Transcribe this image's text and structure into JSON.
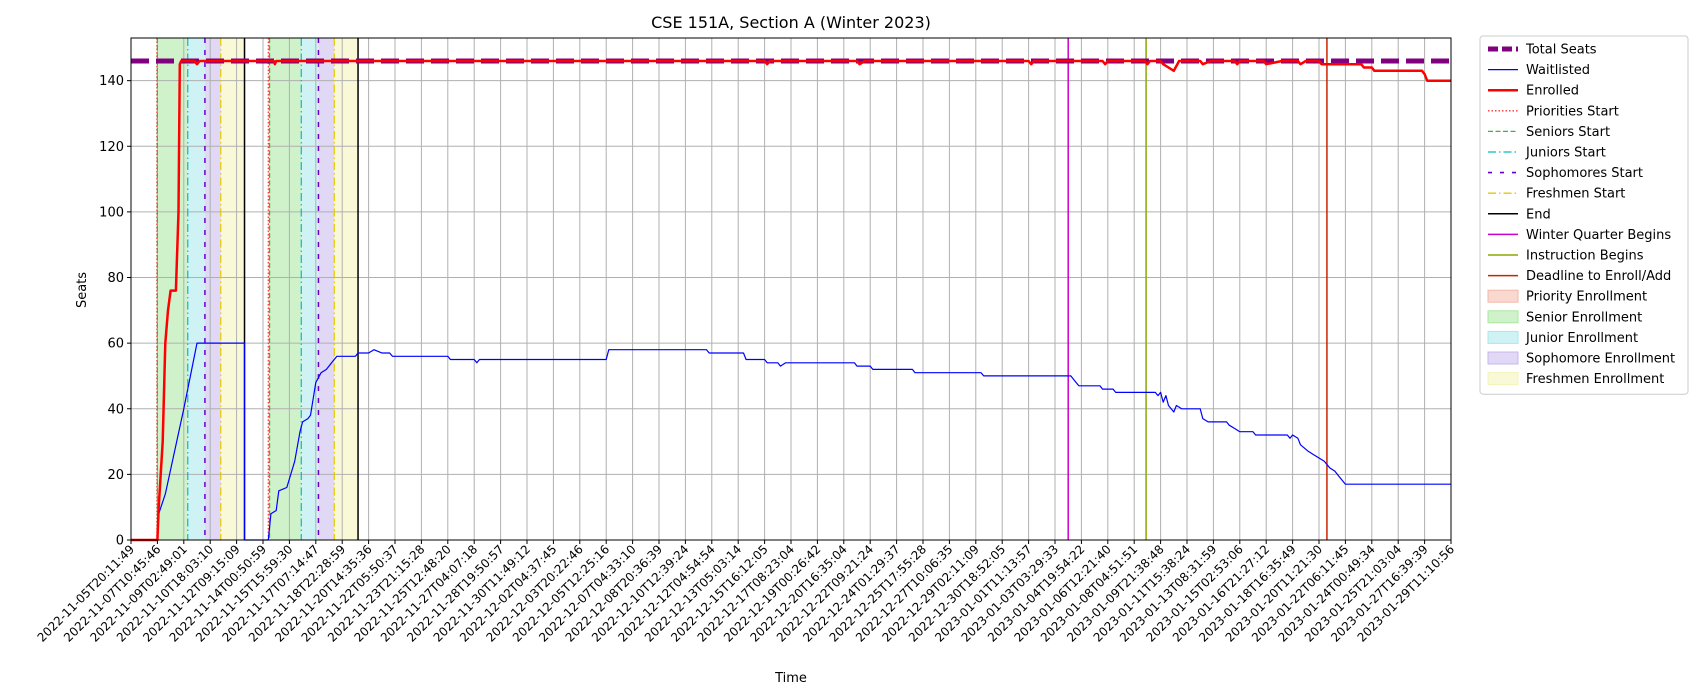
{
  "chart_data": {
    "type": "line",
    "title": "CSE 151A, Section A (Winter 2023)",
    "xlabel": "Time",
    "ylabel": "Seats",
    "ylim": [
      0,
      153
    ],
    "yticks": [
      0,
      20,
      40,
      60,
      80,
      100,
      120,
      140
    ],
    "xrange_index": [
      0,
      50
    ],
    "xtick_labels": [
      "2022-11-05T20:11:49",
      "2022-11-07T10:45:46",
      "2022-11-09T02:49:01",
      "2022-11-10T18:03:10",
      "2022-11-12T09:15:09",
      "2022-11-14T00:50:59",
      "2022-11-15T15:59:30",
      "2022-11-17T07:14:47",
      "2022-11-18T22:28:59",
      "2022-11-20T14:35:36",
      "2022-11-22T05:50:37",
      "2022-11-23T21:15:28",
      "2022-11-25T12:48:20",
      "2022-11-27T04:07:18",
      "2022-11-28T19:50:57",
      "2022-11-30T11:49:12",
      "2022-12-02T04:37:45",
      "2022-12-03T20:22:46",
      "2022-12-05T12:25:16",
      "2022-12-07T04:33:10",
      "2022-12-08T20:36:39",
      "2022-12-10T12:39:24",
      "2022-12-12T04:54:54",
      "2022-12-13T05:03:14",
      "2022-12-15T16:12:05",
      "2022-12-17T08:23:04",
      "2022-12-19T00:26:42",
      "2022-12-20T16:35:04",
      "2022-12-22T09:21:24",
      "2022-12-24T01:29:37",
      "2022-12-25T17:55:28",
      "2022-12-27T10:06:35",
      "2022-12-29T02:11:09",
      "2022-12-30T18:52:05",
      "2023-01-01T11:13:57",
      "2023-01-03T03:29:33",
      "2023-01-04T19:54:22",
      "2023-01-06T12:21:40",
      "2023-01-08T04:51:51",
      "2023-01-09T21:38:48",
      "2023-01-11T15:38:24",
      "2023-01-13T08:31:59",
      "2023-01-15T02:53:06",
      "2023-01-16T21:27:12",
      "2023-01-18T16:35:49",
      "2023-01-20T11:21:30",
      "2023-01-22T06:11:45",
      "2023-01-24T00:49:34",
      "2023-01-25T21:03:04",
      "2023-01-27T16:39:39",
      "2023-01-29T11:10:56"
    ],
    "total_seats": 146,
    "series": [
      {
        "name": "Waitlisted",
        "color": "#0000ff",
        "points": [
          [
            0,
            0
          ],
          [
            1.0,
            0
          ],
          [
            1.05,
            8
          ],
          [
            1.3,
            14
          ],
          [
            2.0,
            40
          ],
          [
            2.5,
            60
          ],
          [
            3.0,
            60
          ],
          [
            3.5,
            60
          ],
          [
            4.3,
            60
          ],
          [
            4.3,
            0
          ],
          [
            5.2,
            0
          ],
          [
            5.3,
            8
          ],
          [
            5.5,
            9
          ],
          [
            5.6,
            15
          ],
          [
            5.9,
            16
          ],
          [
            6.2,
            24
          ],
          [
            6.4,
            33
          ],
          [
            6.5,
            36
          ],
          [
            6.7,
            37
          ],
          [
            6.8,
            38
          ],
          [
            7.0,
            48
          ],
          [
            7.2,
            51
          ],
          [
            7.4,
            52
          ],
          [
            7.6,
            54
          ],
          [
            7.8,
            56
          ],
          [
            8.5,
            56
          ],
          [
            8.6,
            57
          ],
          [
            9.0,
            57
          ],
          [
            9.2,
            58
          ],
          [
            9.5,
            57
          ],
          [
            9.8,
            57
          ],
          [
            9.9,
            56
          ],
          [
            12.0,
            56
          ],
          [
            12.1,
            55
          ],
          [
            13.0,
            55
          ],
          [
            13.1,
            54
          ],
          [
            13.2,
            55
          ],
          [
            18.0,
            55
          ],
          [
            18.1,
            58
          ],
          [
            21.8,
            58
          ],
          [
            21.9,
            57
          ],
          [
            23.2,
            57
          ],
          [
            23.3,
            55
          ],
          [
            24.0,
            55
          ],
          [
            24.1,
            54
          ],
          [
            24.5,
            54
          ],
          [
            24.6,
            53
          ],
          [
            24.8,
            54
          ],
          [
            27.4,
            54
          ],
          [
            27.5,
            53
          ],
          [
            28.0,
            53
          ],
          [
            28.1,
            52
          ],
          [
            29.6,
            52
          ],
          [
            29.7,
            51
          ],
          [
            32.2,
            51
          ],
          [
            32.3,
            50
          ],
          [
            35.6,
            50
          ],
          [
            35.8,
            48
          ],
          [
            35.9,
            47
          ],
          [
            36.7,
            47
          ],
          [
            36.8,
            46
          ],
          [
            37.2,
            46
          ],
          [
            37.3,
            45
          ],
          [
            38.8,
            45
          ],
          [
            38.9,
            44
          ],
          [
            39.0,
            45
          ],
          [
            39.1,
            42
          ],
          [
            39.2,
            44
          ],
          [
            39.3,
            41
          ],
          [
            39.5,
            39
          ],
          [
            39.6,
            41
          ],
          [
            39.8,
            40
          ],
          [
            40.5,
            40
          ],
          [
            40.6,
            37
          ],
          [
            40.8,
            36
          ],
          [
            41.5,
            36
          ],
          [
            41.6,
            35
          ],
          [
            41.8,
            34
          ],
          [
            42.0,
            33
          ],
          [
            42.5,
            33
          ],
          [
            42.6,
            32
          ],
          [
            43.8,
            32
          ],
          [
            43.9,
            31
          ],
          [
            44.0,
            32
          ],
          [
            44.2,
            31
          ],
          [
            44.3,
            29
          ],
          [
            44.6,
            27
          ],
          [
            44.8,
            26
          ],
          [
            45.0,
            25
          ],
          [
            45.2,
            24
          ],
          [
            45.4,
            22
          ],
          [
            45.6,
            21
          ],
          [
            45.8,
            19
          ],
          [
            46.0,
            17
          ],
          [
            50,
            17
          ]
        ]
      },
      {
        "name": "Enrolled",
        "color": "#ff0000",
        "points": [
          [
            0,
            0
          ],
          [
            1.0,
            0
          ],
          [
            1.05,
            10
          ],
          [
            1.2,
            30
          ],
          [
            1.3,
            60
          ],
          [
            1.4,
            70
          ],
          [
            1.5,
            76
          ],
          [
            1.7,
            76
          ],
          [
            1.8,
            100
          ],
          [
            1.85,
            145
          ],
          [
            1.9,
            146
          ],
          [
            2.4,
            146
          ],
          [
            2.5,
            145
          ],
          [
            2.6,
            146
          ],
          [
            5.4,
            146
          ],
          [
            5.45,
            145
          ],
          [
            5.5,
            146
          ],
          [
            24.0,
            146
          ],
          [
            24.1,
            145
          ],
          [
            24.2,
            146
          ],
          [
            27.5,
            146
          ],
          [
            27.6,
            145
          ],
          [
            27.8,
            146
          ],
          [
            34.0,
            146
          ],
          [
            34.1,
            145
          ],
          [
            34.2,
            146
          ],
          [
            36.8,
            146
          ],
          [
            36.9,
            145
          ],
          [
            37.0,
            146
          ],
          [
            38.4,
            146
          ],
          [
            38.5,
            145
          ],
          [
            38.6,
            146
          ],
          [
            39.0,
            146
          ],
          [
            39.1,
            145
          ],
          [
            39.3,
            144
          ],
          [
            39.5,
            143
          ],
          [
            39.7,
            146
          ],
          [
            40.5,
            146
          ],
          [
            40.6,
            145
          ],
          [
            40.9,
            146
          ],
          [
            41.8,
            146
          ],
          [
            41.9,
            145
          ],
          [
            42.0,
            146
          ],
          [
            42.9,
            146
          ],
          [
            43.0,
            145
          ],
          [
            43.6,
            146
          ],
          [
            44.2,
            146
          ],
          [
            44.3,
            145
          ],
          [
            44.5,
            146
          ],
          [
            45.0,
            146
          ],
          [
            45.1,
            145
          ],
          [
            46.6,
            145
          ],
          [
            46.7,
            144
          ],
          [
            47.0,
            144
          ],
          [
            47.1,
            143
          ],
          [
            48.9,
            143
          ],
          [
            49.0,
            142
          ],
          [
            49.1,
            140
          ],
          [
            50,
            140
          ]
        ]
      }
    ],
    "vlines": [
      {
        "name": "Priorities Start",
        "x": 0.98,
        "color": "#ff3333",
        "dash": "1.5,2",
        "width": 1.2
      },
      {
        "name": "Seniors Start",
        "x": 1.0,
        "color": "#33bb33",
        "dash": "5,2.5",
        "width": 1.2
      },
      {
        "name": "Juniors Start",
        "x": 2.15,
        "color": "#00bfbf",
        "dash": "8,3,1.5,3",
        "width": 1.2
      },
      {
        "name": "Sophomores Start",
        "x": 2.8,
        "color": "#6600cc",
        "dash": "5,7",
        "width": 1.5
      },
      {
        "name": "Freshmen Start",
        "x": 3.4,
        "color": "#e6c800",
        "dash": "8,3,1.5,3",
        "width": 1.2
      },
      {
        "name": "End",
        "x": 4.3,
        "color": "#000000",
        "dash": "",
        "width": 1.5
      },
      {
        "name": "Priorities Start",
        "x": 5.2,
        "color": "#ff3333",
        "dash": "1.5,2",
        "width": 1.2
      },
      {
        "name": "Seniors Start",
        "x": 5.25,
        "color": "#33bb33",
        "dash": "5,2.5",
        "width": 1.2
      },
      {
        "name": "Juniors Start",
        "x": 6.45,
        "color": "#00bfbf",
        "dash": "8,3,1.5,3",
        "width": 1.2
      },
      {
        "name": "Sophomores Start",
        "x": 7.1,
        "color": "#6600cc",
        "dash": "5,7",
        "width": 1.5
      },
      {
        "name": "Freshmen Start",
        "x": 7.7,
        "color": "#e6c800",
        "dash": "8,3,1.5,3",
        "width": 1.2
      },
      {
        "name": "End",
        "x": 8.6,
        "color": "#000000",
        "dash": "",
        "width": 1.5
      },
      {
        "name": "Winter Quarter Begins",
        "x": 35.5,
        "color": "#cc00cc",
        "dash": "",
        "width": 1.5
      },
      {
        "name": "Instruction Begins",
        "x": 38.45,
        "color": "#88aa00",
        "dash": "",
        "width": 1.5
      },
      {
        "name": "Deadline to Enroll/Add",
        "x": 45.3,
        "color": "#cc2200",
        "dash": "",
        "width": 1.5
      }
    ],
    "bands": [
      {
        "name": "Priority Enrollment",
        "x0": 0.98,
        "x1": 1.0,
        "color": "#f4b8a8"
      },
      {
        "name": "Senior Enrollment",
        "x0": 1.0,
        "x1": 2.15,
        "color": "#a8e8a0"
      },
      {
        "name": "Junior Enrollment",
        "x0": 2.15,
        "x1": 2.8,
        "color": "#a8e8ec"
      },
      {
        "name": "Sophomore Enrollment",
        "x0": 2.8,
        "x1": 3.4,
        "color": "#c8b8ec"
      },
      {
        "name": "Freshmen Enrollment",
        "x0": 3.4,
        "x1": 4.3,
        "color": "#f4f4b8"
      },
      {
        "name": "Priority Enrollment",
        "x0": 5.2,
        "x1": 5.25,
        "color": "#f4b8a8"
      },
      {
        "name": "Senior Enrollment",
        "x0": 5.25,
        "x1": 6.45,
        "color": "#a8e8a0"
      },
      {
        "name": "Junior Enrollment",
        "x0": 6.45,
        "x1": 7.1,
        "color": "#a8e8ec"
      },
      {
        "name": "Sophomore Enrollment",
        "x0": 7.1,
        "x1": 7.7,
        "color": "#c8b8ec"
      },
      {
        "name": "Freshmen Enrollment",
        "x0": 7.7,
        "x1": 8.6,
        "color": "#f4f4b8"
      }
    ],
    "legend": [
      {
        "label": "Total Seats",
        "kind": "line",
        "color": "#800080",
        "dash": "10,4",
        "width": 5
      },
      {
        "label": "Waitlisted",
        "kind": "line",
        "color": "#0000ff",
        "dash": "",
        "width": 1.2
      },
      {
        "label": "Enrolled",
        "kind": "line",
        "color": "#ff0000",
        "dash": "",
        "width": 2.5
      },
      {
        "label": "Priorities Start",
        "kind": "line",
        "color": "#ff3333",
        "dash": "1.5,2",
        "width": 1.3
      },
      {
        "label": "Seniors Start",
        "kind": "line",
        "color": "#33bb33",
        "dash": "5,2.5",
        "width": 1.3
      },
      {
        "label": "Juniors Start",
        "kind": "line",
        "color": "#00bfbf",
        "dash": "8,3,1.5,3",
        "width": 1.3
      },
      {
        "label": "Sophomores Start",
        "kind": "line",
        "color": "#6600cc",
        "dash": "4,8",
        "width": 1.6
      },
      {
        "label": "Freshmen Start",
        "kind": "line",
        "color": "#e6c800",
        "dash": "8,3,1.5,3",
        "width": 1.3
      },
      {
        "label": "End",
        "kind": "line",
        "color": "#000000",
        "dash": "",
        "width": 1.5
      },
      {
        "label": "Winter Quarter Begins",
        "kind": "line",
        "color": "#cc00cc",
        "dash": "",
        "width": 1.5
      },
      {
        "label": "Instruction Begins",
        "kind": "line",
        "color": "#88aa00",
        "dash": "",
        "width": 1.5
      },
      {
        "label": "Deadline to Enroll/Add",
        "kind": "line",
        "color": "#cc2200",
        "dash": "",
        "width": 1.5
      },
      {
        "label": "Priority Enrollment",
        "kind": "patch",
        "color": "#f4b8a8"
      },
      {
        "label": "Senior Enrollment",
        "kind": "patch",
        "color": "#a8e8a0"
      },
      {
        "label": "Junior Enrollment",
        "kind": "patch",
        "color": "#a8e8ec"
      },
      {
        "label": "Sophomore Enrollment",
        "kind": "patch",
        "color": "#c8b8ec"
      },
      {
        "label": "Freshmen Enrollment",
        "kind": "patch",
        "color": "#f4f4b8"
      }
    ],
    "legend_position": "outside-right",
    "grid": true
  }
}
